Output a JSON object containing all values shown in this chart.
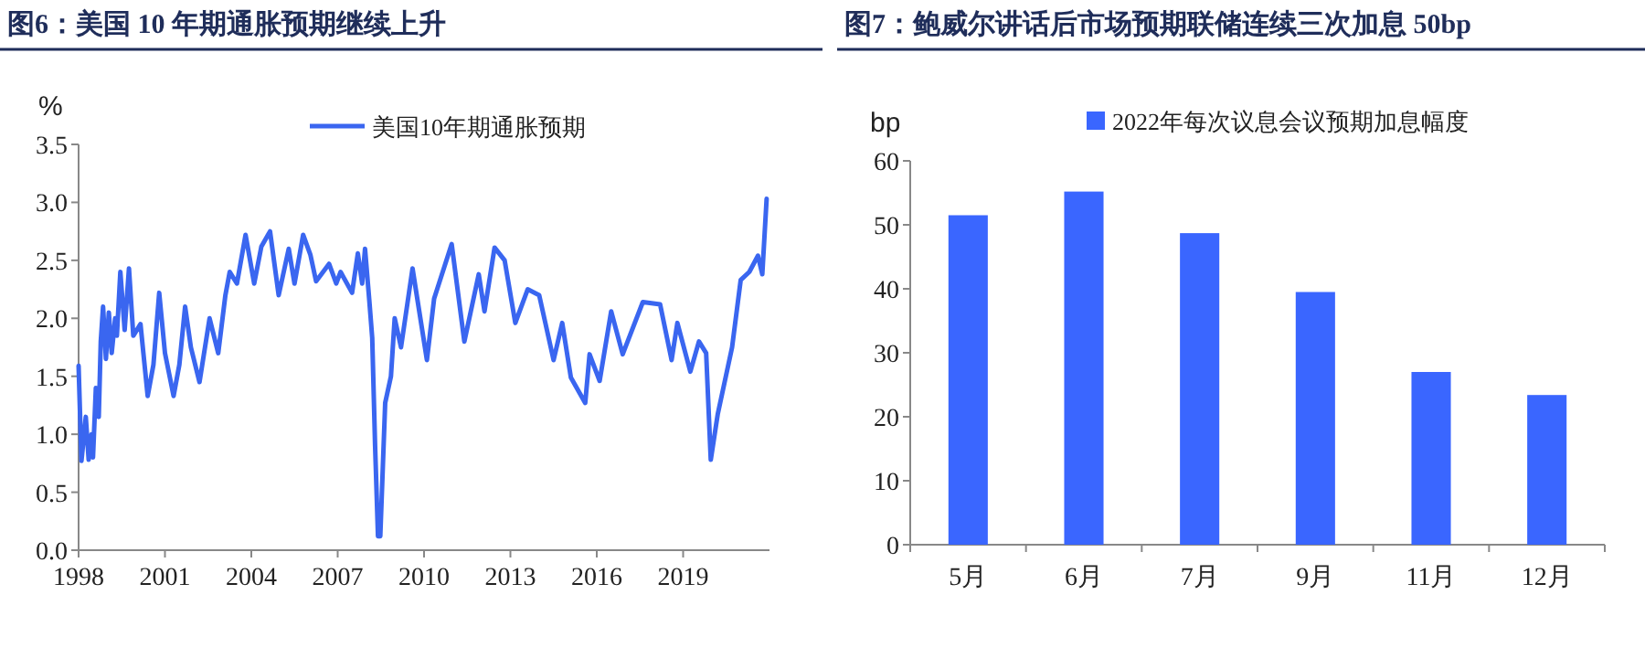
{
  "chart_data": [
    {
      "type": "line",
      "title": "图6：美国 10 年期通胀预期继续上升",
      "ylabel": "%",
      "legend": "top",
      "xlim": [
        1998,
        2022
      ],
      "xticks": [
        1998,
        2001,
        2004,
        2007,
        2010,
        2013,
        2016,
        2019
      ],
      "ylim": [
        0,
        3.5
      ],
      "yticks": [
        {
          "value": 0,
          "label": "0.0"
        },
        {
          "value": 0.5,
          "label": "0.5"
        },
        {
          "value": 1,
          "label": "1.0"
        },
        {
          "value": 1.5,
          "label": "1.5"
        },
        {
          "value": 2,
          "label": "2.0"
        },
        {
          "value": 2.5,
          "label": "2.5"
        },
        {
          "value": 3,
          "label": "3.0"
        },
        {
          "value": 3.5,
          "label": "3.5"
        }
      ],
      "series": [
        {
          "name": "美国10年期通胀预期",
          "color": "#3a66f0",
          "x": [
            1998.0,
            1998.1,
            1998.25,
            1998.35,
            1998.45,
            1998.5,
            1998.6,
            1998.7,
            1998.77,
            1998.85,
            1998.95,
            1999.05,
            1999.15,
            1999.27,
            1999.33,
            1999.45,
            1999.6,
            1999.75,
            1999.9,
            2000.15,
            2000.25,
            2000.4,
            2000.6,
            2000.8,
            2001.0,
            2001.3,
            2001.5,
            2001.7,
            2001.9,
            2002.2,
            2002.55,
            2002.85,
            2003.1,
            2003.25,
            2003.5,
            2003.8,
            2004.1,
            2004.35,
            2004.65,
            2004.95,
            2005.3,
            2005.5,
            2005.8,
            2006.05,
            2006.25,
            2006.7,
            2006.95,
            2007.1,
            2007.5,
            2007.7,
            2007.85,
            2007.95,
            2008.1,
            2008.2,
            2008.3,
            2008.4,
            2008.48,
            2008.65,
            2008.85,
            2008.98,
            2009.2,
            2009.6,
            2010.1,
            2010.35,
            2010.96,
            2011.4,
            2011.9,
            2012.1,
            2012.45,
            2012.8,
            2013.17,
            2013.6,
            2014.0,
            2014.5,
            2014.8,
            2015.1,
            2015.6,
            2015.75,
            2016.1,
            2016.5,
            2016.9,
            2017.6,
            2018.2,
            2018.6,
            2018.8,
            2019.25,
            2019.55,
            2019.8,
            2019.96,
            2020.2,
            2020.7,
            2021.0,
            2021.3,
            2021.6,
            2021.75,
            2021.9
          ],
          "values": [
            1.59,
            0.77,
            1.15,
            0.78,
            1.0,
            0.8,
            1.4,
            1.15,
            1.8,
            2.1,
            1.65,
            2.05,
            1.7,
            2.0,
            1.85,
            2.4,
            1.9,
            2.43,
            1.85,
            1.95,
            1.7,
            1.33,
            1.6,
            2.22,
            1.7,
            1.33,
            1.6,
            2.1,
            1.75,
            1.45,
            2.0,
            1.7,
            2.2,
            2.4,
            2.3,
            2.72,
            2.3,
            2.62,
            2.75,
            2.2,
            2.6,
            2.3,
            2.72,
            2.55,
            2.32,
            2.47,
            2.3,
            2.4,
            2.22,
            2.56,
            2.3,
            2.6,
            2.15,
            1.83,
            0.9,
            0.12,
            0.12,
            1.27,
            1.5,
            2.0,
            1.75,
            2.43,
            1.64,
            2.17,
            2.64,
            1.8,
            2.38,
            2.06,
            2.61,
            2.5,
            1.96,
            2.25,
            2.2,
            1.64,
            1.96,
            1.49,
            1.27,
            1.69,
            1.46,
            2.06,
            1.69,
            2.14,
            2.12,
            1.64,
            1.96,
            1.54,
            1.8,
            1.7,
            0.78,
            1.17,
            1.75,
            2.33,
            2.4,
            2.54,
            2.38,
            3.03
          ]
        }
      ]
    },
    {
      "type": "bar",
      "title": "图7：鲍威尔讲话后市场预期联储连续三次加息 50bp",
      "ylabel": "bp",
      "legend": "top",
      "categories": [
        "5月",
        "6月",
        "7月",
        "9月",
        "11月",
        "12月"
      ],
      "ylim": [
        0,
        60
      ],
      "yticks": [
        0,
        10,
        20,
        30,
        40,
        50,
        60
      ],
      "series": [
        {
          "name": "2022年每次议息会议预期加息幅度",
          "color": "#3a66ff",
          "values": [
            51.5,
            55.2,
            48.7,
            39.5,
            27.0,
            23.4
          ]
        }
      ]
    }
  ]
}
